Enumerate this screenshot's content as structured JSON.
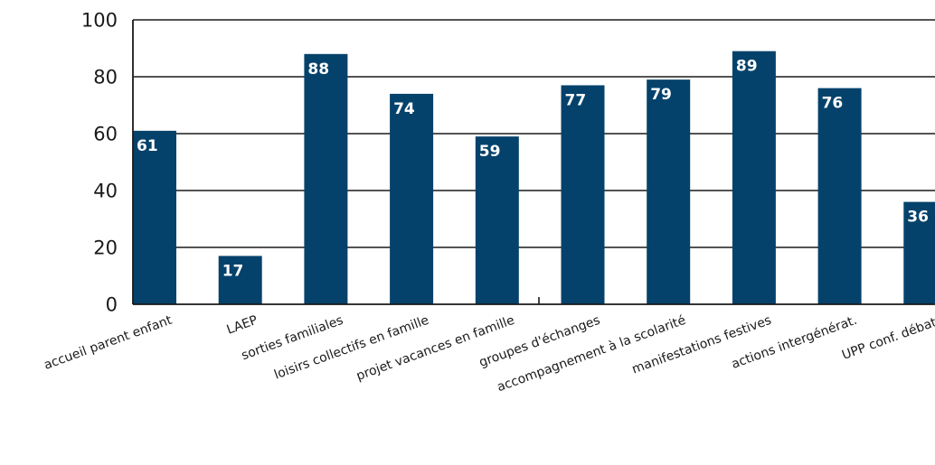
{
  "chart_data": {
    "type": "bar",
    "title": "",
    "xlabel": "",
    "ylabel": "",
    "ylim": [
      0,
      100
    ],
    "yticks": [
      0,
      20,
      40,
      60,
      80,
      100
    ],
    "ytick_labels": [
      "0",
      "20",
      "40",
      "60",
      "80",
      "100"
    ],
    "grid": true,
    "legend": "none",
    "bar_color": "#05426b",
    "categories": [
      "accueil parent enfant",
      "LAEP",
      "sorties familiales",
      "loisirs collectifs en famille",
      "projet vacances en famille",
      "groupes d'échanges",
      "accompagnement à la scolarité",
      "manifestations festives",
      "actions intergénérat.",
      "UPP conf. débats"
    ],
    "values": [
      61,
      17,
      88,
      74,
      59,
      77,
      79,
      89,
      76,
      36
    ],
    "data_labels": [
      "61",
      "17",
      "88",
      "74",
      "59",
      "77",
      "79",
      "89",
      "76",
      "36"
    ]
  }
}
